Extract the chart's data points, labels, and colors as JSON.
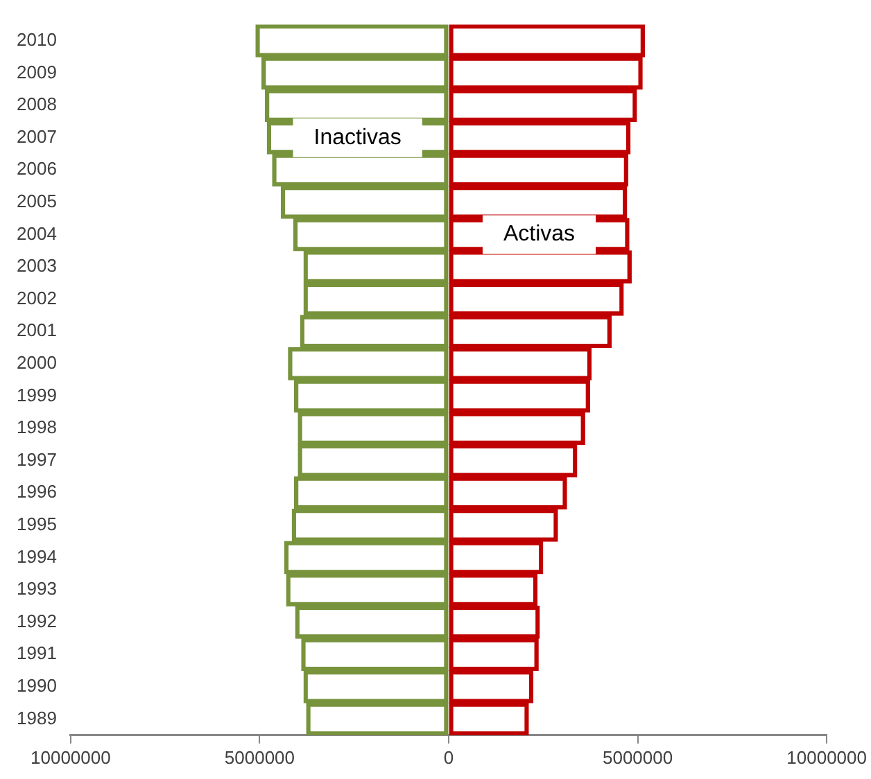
{
  "chart_data": {
    "type": "bar",
    "orientation": "horizontal",
    "categories": [
      "2010",
      "2009",
      "2008",
      "2007",
      "2006",
      "2005",
      "2004",
      "2003",
      "2002",
      "2001",
      "2000",
      "1999",
      "1998",
      "1997",
      "1996",
      "1995",
      "1994",
      "1993",
      "1992",
      "1991",
      "1990",
      "1989"
    ],
    "series": [
      {
        "name": "Inactivas",
        "color": "#77933c",
        "values": [
          -5100000,
          -4940000,
          -4850000,
          -4800000,
          -4660000,
          -4430000,
          -4100000,
          -3830000,
          -3830000,
          -3920000,
          -4240000,
          -4080000,
          -3980000,
          -3980000,
          -4080000,
          -4140000,
          -4340000,
          -4290000,
          -4050000,
          -3890000,
          -3830000,
          -3760000
        ]
      },
      {
        "name": "Activas",
        "color": "#c00000",
        "values": [
          5180000,
          5120000,
          4970000,
          4800000,
          4740000,
          4710000,
          4770000,
          4830000,
          4620000,
          4300000,
          3770000,
          3730000,
          3600000,
          3390000,
          3120000,
          2880000,
          2490000,
          2340000,
          2400000,
          2370000,
          2230000,
          2110000
        ]
      }
    ],
    "xlim": [
      -10000000,
      10000000
    ],
    "xticks": [
      {
        "value": -10000000,
        "label": "10000000"
      },
      {
        "value": -5000000,
        "label": "5000000"
      },
      0,
      5000000,
      10000000
    ],
    "stacked": true,
    "grid": false,
    "legend": false
  }
}
